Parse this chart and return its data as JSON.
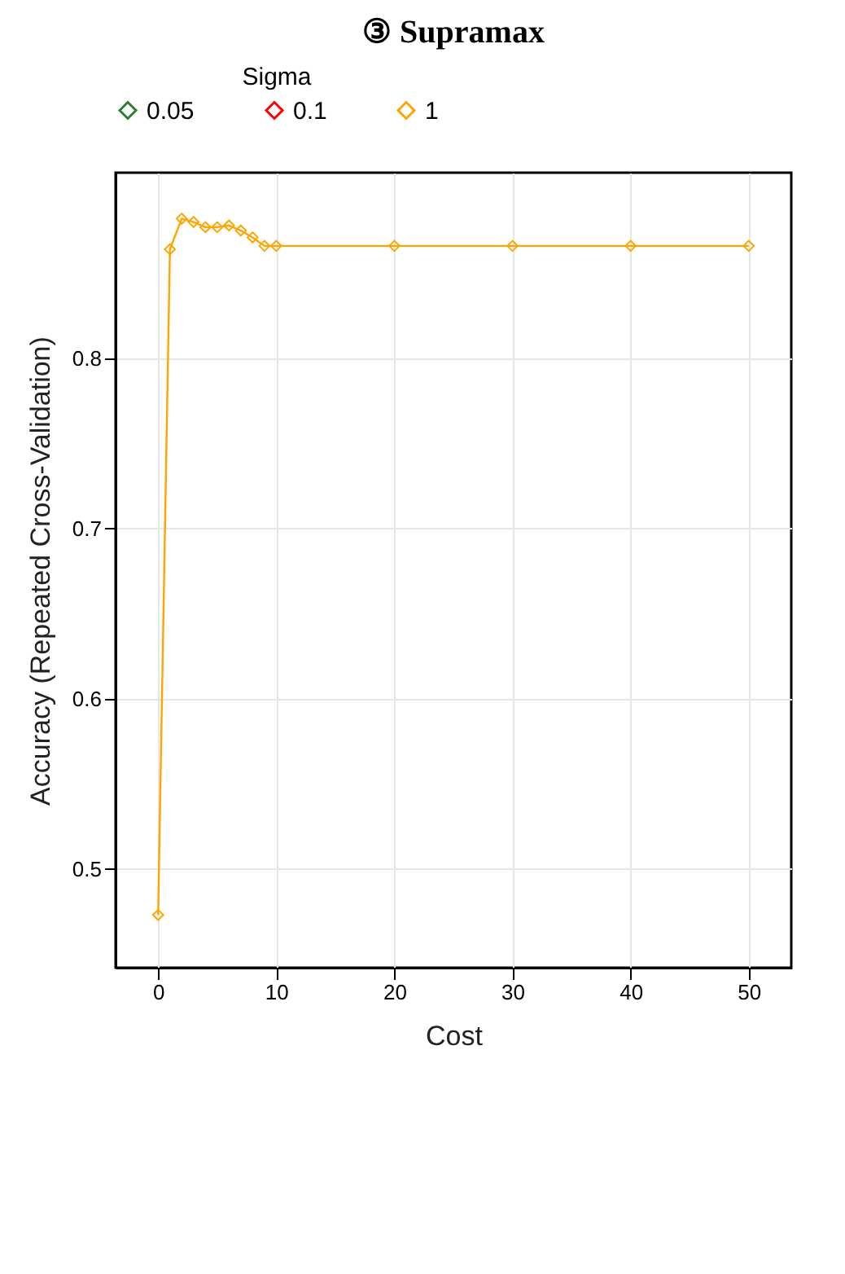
{
  "chart_data": {
    "type": "line",
    "title": "③    Supramax",
    "xlabel": "Cost",
    "ylabel": "Accuracy (Repeated Cross-Validation)",
    "legend_title": "Sigma",
    "x": [
      0,
      1,
      2,
      3,
      4,
      5,
      6,
      7,
      8,
      9,
      10,
      20,
      30,
      40,
      50
    ],
    "series": [
      {
        "name": "0.05",
        "color": "#2e7d32",
        "values": [
          null,
          null,
          null,
          null,
          null,
          null,
          null,
          null,
          null,
          null,
          null,
          null,
          null,
          null,
          null
        ]
      },
      {
        "name": "0.1",
        "color": "#ff0000",
        "values": [
          null,
          null,
          null,
          null,
          null,
          null,
          null,
          null,
          null,
          null,
          null,
          null,
          null,
          null,
          null
        ]
      },
      {
        "name": "1",
        "color": "#ffa500",
        "values": [
          0.473,
          0.864,
          0.882,
          0.88,
          0.877,
          0.877,
          0.878,
          0.875,
          0.871,
          0.866,
          0.866,
          0.866,
          0.866,
          0.866,
          0.866
        ]
      }
    ],
    "xlim": [
      -3.6,
      53.6
    ],
    "xticks": [
      0,
      10,
      20,
      30,
      40,
      50
    ],
    "ylim": [
      0.442,
      0.909
    ],
    "yticks": [
      0.5,
      0.6,
      0.7,
      0.8
    ],
    "grid": true,
    "legend": "top",
    "marker": "diamond",
    "line_style": "solid"
  }
}
